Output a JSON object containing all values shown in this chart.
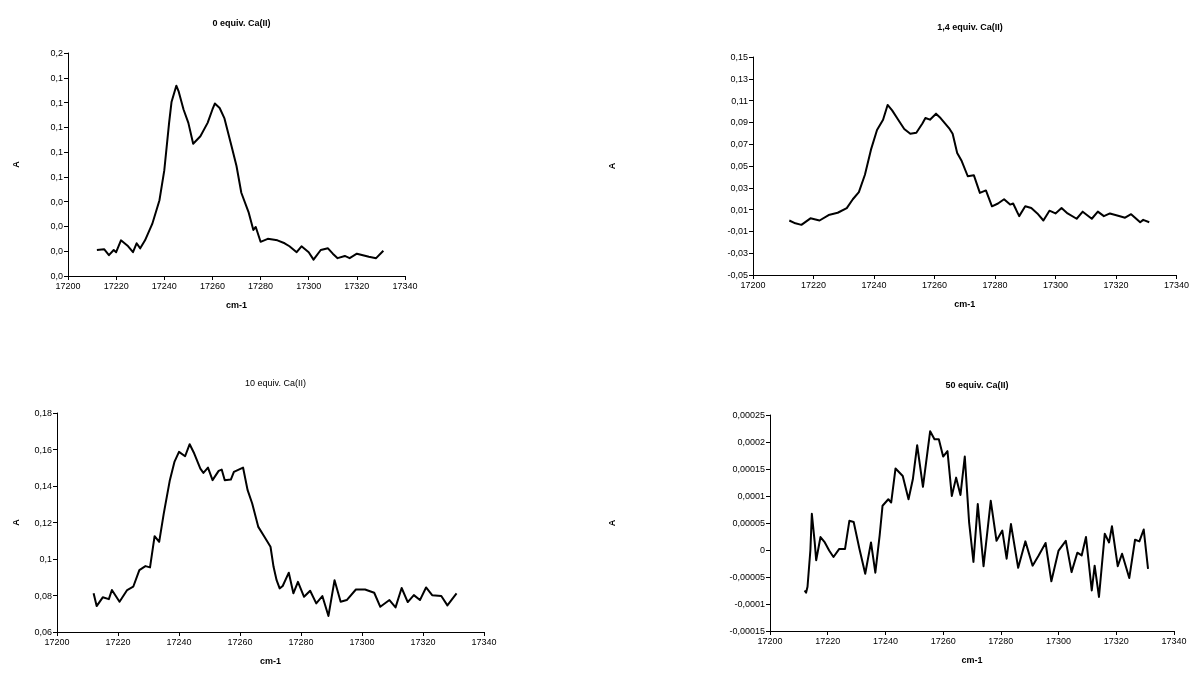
{
  "chart_data": [
    {
      "type": "line",
      "title": "0 equiv. Ca(II)",
      "xlabel": "cm-1",
      "ylabel": "A",
      "color": "#000000",
      "marker": "none",
      "x": [
        17212,
        17215,
        17217,
        17219,
        17220,
        17222,
        17225,
        17227,
        17228.5,
        17230,
        17232,
        17235,
        17238,
        17240,
        17242,
        17243,
        17245,
        17246,
        17248,
        17250,
        17252,
        17255,
        17258,
        17260,
        17261,
        17263,
        17265,
        17268,
        17270,
        17272,
        17275,
        17277,
        17278,
        17280,
        17283,
        17287,
        17290,
        17292,
        17295,
        17297,
        17300,
        17302,
        17305,
        17308,
        17310,
        17312,
        17315,
        17317,
        17320,
        17325,
        17328,
        17331
      ],
      "values": [
        0.0175,
        0.018,
        0.014,
        0.0175,
        0.016,
        0.024,
        0.02,
        0.016,
        0.022,
        0.0186,
        0.024,
        0.035,
        0.051,
        0.071,
        0.103,
        0.117,
        0.128,
        0.124,
        0.112,
        0.103,
        0.089,
        0.094,
        0.103,
        0.112,
        0.116,
        0.113,
        0.106,
        0.087,
        0.074,
        0.056,
        0.043,
        0.031,
        0.033,
        0.023,
        0.025,
        0.024,
        0.022,
        0.02,
        0.016,
        0.02,
        0.016,
        0.011,
        0.0175,
        0.0186,
        0.015,
        0.012,
        0.0135,
        0.012,
        0.015,
        0.013,
        0.012,
        0.017
      ],
      "xlim": [
        17200,
        17340
      ],
      "xticks": [
        17200,
        17220,
        17240,
        17260,
        17280,
        17300,
        17320,
        17340
      ],
      "ylim": [
        0,
        0.15
      ],
      "yticks": [
        {
          "value": 0,
          "label": "0,0"
        },
        {
          "value": 0.0167,
          "label": "0,0"
        },
        {
          "value": 0.0333,
          "label": "0,0"
        },
        {
          "value": 0.05,
          "label": "0,0"
        },
        {
          "value": 0.0667,
          "label": "0,1"
        },
        {
          "value": 0.0833,
          "label": "0,1"
        },
        {
          "value": 0.1,
          "label": "0,1"
        },
        {
          "value": 0.1167,
          "label": "0,1"
        },
        {
          "value": 0.1333,
          "label": "0,1"
        },
        {
          "value": 0.15,
          "label": "0,2"
        }
      ]
    },
    {
      "type": "line",
      "title": "1,4 equiv. Ca(II)",
      "xlabel": "cm-1",
      "ylabel": "A",
      "color": "#000000",
      "marker": "none",
      "x": [
        17212,
        17214,
        17216,
        17219,
        17222,
        17225,
        17228,
        17231,
        17233,
        17235,
        17237,
        17239,
        17241,
        17243,
        17244.5,
        17246,
        17248,
        17250,
        17252,
        17254,
        17256,
        17257,
        17258.5,
        17260.5,
        17262,
        17265,
        17266,
        17267.5,
        17269,
        17271,
        17273,
        17275,
        17277,
        17279,
        17281,
        17283,
        17285,
        17286,
        17288,
        17290,
        17292,
        17294,
        17296,
        17298,
        17300,
        17302,
        17304,
        17307,
        17309,
        17312,
        17314,
        17316,
        17318,
        17321,
        17323,
        17325,
        17328,
        17329,
        17331
      ],
      "values": [
        0.0,
        -0.0026,
        -0.004,
        0.002,
        0.0,
        0.005,
        0.0071,
        0.0114,
        0.0195,
        0.026,
        0.042,
        0.065,
        0.083,
        0.0925,
        0.106,
        0.101,
        0.0925,
        0.084,
        0.0795,
        0.0805,
        0.089,
        0.094,
        0.0925,
        0.098,
        0.094,
        0.084,
        0.0795,
        0.062,
        0.0545,
        0.0406,
        0.0416,
        0.0253,
        0.0276,
        0.013,
        0.0156,
        0.0195,
        0.0146,
        0.0156,
        0.004,
        0.013,
        0.0114,
        0.0065,
        0.0,
        0.009,
        0.0065,
        0.0114,
        0.0065,
        0.0016,
        0.0081,
        0.0016,
        0.0081,
        0.004,
        0.0065,
        0.0042,
        0.0026,
        0.0058,
        -0.0016,
        0.0006,
        -0.0016
      ],
      "xlim": [
        17200,
        17340
      ],
      "xticks": [
        17200,
        17220,
        17240,
        17260,
        17280,
        17300,
        17320,
        17340
      ],
      "ylim": [
        -0.05,
        0.15
      ],
      "yticks": [
        {
          "value": -0.05,
          "label": "-0,05"
        },
        {
          "value": -0.03,
          "label": "-0,03"
        },
        {
          "value": -0.01,
          "label": "-0,01"
        },
        {
          "value": 0.01,
          "label": "0,01"
        },
        {
          "value": 0.03,
          "label": "0,03"
        },
        {
          "value": 0.05,
          "label": "0,05"
        },
        {
          "value": 0.07,
          "label": "0,07"
        },
        {
          "value": 0.09,
          "label": "0,09"
        },
        {
          "value": 0.11,
          "label": "0,11"
        },
        {
          "value": 0.13,
          "label": "0,13"
        },
        {
          "value": 0.15,
          "label": "0,15"
        }
      ]
    },
    {
      "type": "line",
      "title": "10 equiv. Ca(II)",
      "xlabel": "cm-1",
      "ylabel": "A",
      "color": "#000000",
      "marker": "none",
      "x": [
        17212,
        17213,
        17215,
        17217,
        17218,
        17220.5,
        17223,
        17225,
        17227,
        17229,
        17230.5,
        17232,
        17233.5,
        17235,
        17237,
        17238.5,
        17240,
        17242,
        17243.5,
        17245,
        17247,
        17248,
        17249.5,
        17251,
        17253,
        17254,
        17255,
        17257,
        17258,
        17261,
        17262.5,
        17264,
        17266,
        17268,
        17270,
        17271,
        17272,
        17273,
        17274,
        17276,
        17277.5,
        17279,
        17281,
        17283,
        17285,
        17287,
        17289,
        17291,
        17293,
        17295,
        17298,
        17301,
        17304,
        17306,
        17309,
        17311,
        17313,
        17315,
        17317,
        17319,
        17321,
        17323,
        17326,
        17328,
        17331
      ],
      "values": [
        0.0812,
        0.0742,
        0.079,
        0.078,
        0.083,
        0.0766,
        0.083,
        0.0848,
        0.0939,
        0.0961,
        0.0954,
        0.1125,
        0.1094,
        0.1249,
        0.1432,
        0.1532,
        0.1587,
        0.1563,
        0.1629,
        0.1578,
        0.1495,
        0.1472,
        0.1501,
        0.1432,
        0.1483,
        0.149,
        0.1432,
        0.1435,
        0.1477,
        0.1501,
        0.1377,
        0.1304,
        0.1176,
        0.1122,
        0.1067,
        0.0957,
        0.0884,
        0.0839,
        0.0852,
        0.0925,
        0.0812,
        0.0875,
        0.0793,
        0.0826,
        0.0757,
        0.0797,
        0.0688,
        0.0884,
        0.0766,
        0.0775,
        0.0833,
        0.0833,
        0.0815,
        0.0738,
        0.0775,
        0.0735,
        0.0841,
        0.0764,
        0.0802,
        0.0775,
        0.0844,
        0.0802,
        0.0797,
        0.0746,
        0.0812
      ],
      "xlim": [
        17200,
        17340
      ],
      "xticks": [
        17200,
        17220,
        17240,
        17260,
        17280,
        17300,
        17320,
        17340
      ],
      "ylim": [
        0.06,
        0.18
      ],
      "yticks": [
        {
          "value": 0.06,
          "label": "0,06"
        },
        {
          "value": 0.08,
          "label": "0,08"
        },
        {
          "value": 0.1,
          "label": "0,1"
        },
        {
          "value": 0.12,
          "label": "0,12"
        },
        {
          "value": 0.14,
          "label": "0,14"
        },
        {
          "value": 0.16,
          "label": "0,16"
        },
        {
          "value": 0.18,
          "label": "0,18"
        }
      ]
    },
    {
      "type": "line",
      "title": "50 equiv. Ca(II)",
      "xlabel": "cm-1",
      "ylabel": "A",
      "color": "#000000",
      "marker": "none",
      "x": [
        17212,
        17212.5,
        17213,
        17214,
        17214.5,
        17215.5,
        17216,
        17217.5,
        17219,
        17220.5,
        17222,
        17224,
        17226,
        17227.5,
        17229,
        17231,
        17233,
        17235,
        17236.5,
        17238,
        17239,
        17241,
        17242,
        17243.5,
        17246,
        17248,
        17249.5,
        17251,
        17253,
        17255.5,
        17257,
        17258.5,
        17260,
        17261.5,
        17263,
        17264.5,
        17266,
        17267.5,
        17269,
        17270.5,
        17272,
        17274,
        17276.5,
        17278.5,
        17280.5,
        17282,
        17283.5,
        17286,
        17288.5,
        17291,
        17293,
        17295.5,
        17297.5,
        17300,
        17302.5,
        17304.5,
        17306.5,
        17308,
        17309.5,
        17311.5,
        17312.5,
        17314,
        17316,
        17317.5,
        17318.5,
        17320.5,
        17322,
        17324.5,
        17326.5,
        17328,
        17329.5,
        17331
      ],
      "values": [
        -7.5e-05,
        -7.9e-05,
        -6.8e-05,
        0.0,
        6.7e-05,
        1.4e-05,
        -1.9e-05,
        2.4e-05,
        1.4e-05,
        -1e-06,
        -1.3e-05,
        2e-06,
        2e-06,
        5.4e-05,
        5.2e-05,
        2e-06,
        -4.4e-05,
        1.4e-05,
        -4.2e-05,
        2.7e-05,
        8.2e-05,
        9.4e-05,
        8.8e-05,
        0.000151,
        0.000137,
        9.4e-05,
        0.000131,
        0.000194,
        0.000117,
        0.00022,
        0.000205,
        0.000205,
        0.000173,
        0.000183,
        0.0001,
        0.000134,
        0.000102,
        0.000173,
        5.1e-05,
        -2.2e-05,
        8.5e-05,
        -3e-05,
        9.1e-05,
        1.7e-05,
        3.6e-05,
        -1.6e-05,
        4.8e-05,
        -3.3e-05,
        1.6e-05,
        -2.9e-05,
        -1.1e-05,
        1.3e-05,
        -5.8e-05,
        -1e-06,
        1.7e-05,
        -4.1e-05,
        -5e-06,
        -1e-05,
        2.4e-05,
        -7.5e-05,
        -2.9e-05,
        -8.7e-05,
        3e-05,
        1.4e-05,
        4.4e-05,
        -3e-05,
        -7e-06,
        -5.2e-05,
        1.9e-05,
        1.6e-05,
        3.8e-05,
        -3.5e-05
      ],
      "xlim": [
        17200,
        17340
      ],
      "xticks": [
        17200,
        17220,
        17240,
        17260,
        17280,
        17300,
        17320,
        17340
      ],
      "ylim": [
        -0.00015,
        0.00025
      ],
      "yticks": [
        {
          "value": -0.00015,
          "label": "-0,00015"
        },
        {
          "value": -0.0001,
          "label": "-0,0001"
        },
        {
          "value": -5e-05,
          "label": "-0,00005"
        },
        {
          "value": 0,
          "label": "0"
        },
        {
          "value": 5e-05,
          "label": "0,00005"
        },
        {
          "value": 0.0001,
          "label": "0,0001"
        },
        {
          "value": 0.00015,
          "label": "0,00015"
        },
        {
          "value": 0.0002,
          "label": "0,0002"
        },
        {
          "value": 0.00025,
          "label": "0,00025"
        }
      ]
    }
  ]
}
